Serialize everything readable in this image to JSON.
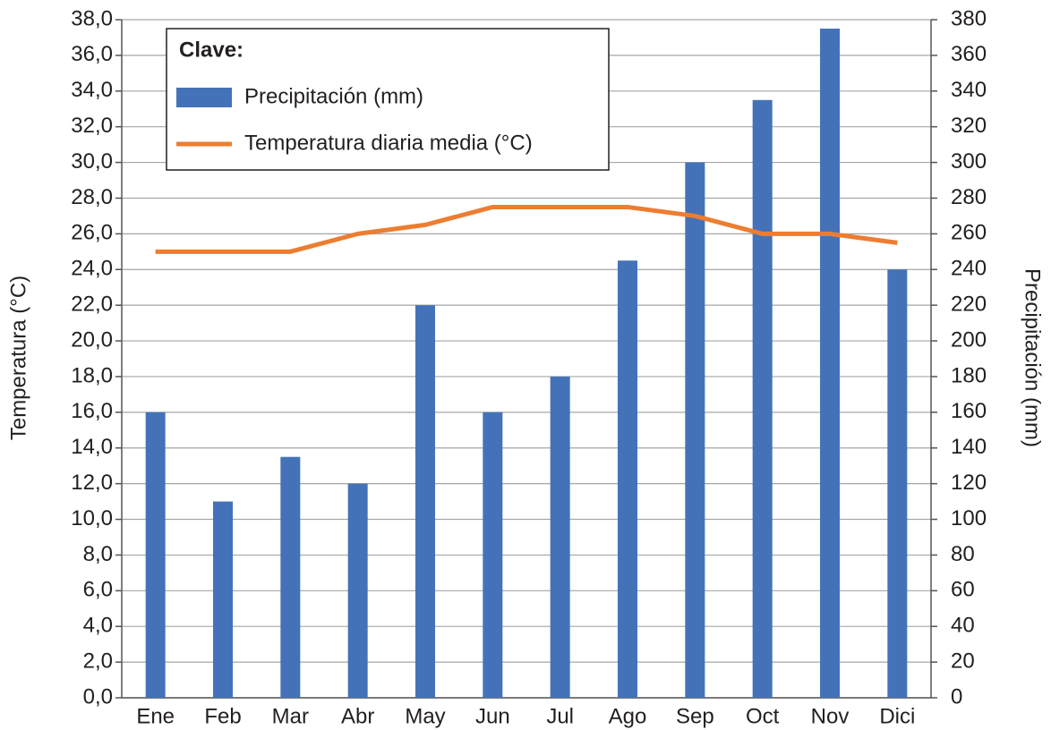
{
  "chart_data": {
    "type": "combo",
    "legend_title": "Clave:",
    "ylabel": "Temperatura  (°C)",
    "y2label": "Precipitación (mm)",
    "categories": [
      "Ene",
      "Feb",
      "Mar",
      "Abr",
      "May",
      "Jun",
      "Jul",
      "Ago",
      "Sep",
      "Oct",
      "Nov",
      "Dici"
    ],
    "series": [
      {
        "name": "Precipitación (mm)",
        "type": "bar",
        "axis": "y2",
        "color": "#4472b8",
        "values": [
          160,
          110,
          135,
          120,
          220,
          160,
          180,
          245,
          300,
          335,
          375,
          240
        ]
      },
      {
        "name": "Temperatura diaria media (°C)",
        "type": "line",
        "axis": "y",
        "color": "#ed7d31",
        "values": [
          25,
          25,
          25,
          26,
          26.5,
          27.5,
          27.5,
          27.5,
          27,
          26,
          26,
          25.5
        ]
      }
    ],
    "ylim": [
      0,
      38
    ],
    "yticks": [
      {
        "value": 0,
        "label": "0,0"
      },
      {
        "value": 2,
        "label": "2,0"
      },
      {
        "value": 4,
        "label": "4,0"
      },
      {
        "value": 6,
        "label": "6,0"
      },
      {
        "value": 8,
        "label": "8,0"
      },
      {
        "value": 10,
        "label": "10,0"
      },
      {
        "value": 12,
        "label": "12,0"
      },
      {
        "value": 14,
        "label": "14,0"
      },
      {
        "value": 16,
        "label": "16,0"
      },
      {
        "value": 18,
        "label": "18,0"
      },
      {
        "value": 20,
        "label": "20,0"
      },
      {
        "value": 22,
        "label": "22,0"
      },
      {
        "value": 24,
        "label": "24,0"
      },
      {
        "value": 26,
        "label": "26,0"
      },
      {
        "value": 28,
        "label": "28,0"
      },
      {
        "value": 30,
        "label": "30,0"
      },
      {
        "value": 32,
        "label": "32,0"
      },
      {
        "value": 34,
        "label": "34,0"
      },
      {
        "value": 36,
        "label": "36,0"
      },
      {
        "value": 38,
        "label": "38,0"
      }
    ],
    "y2lim": [
      0,
      380
    ],
    "y2ticks": [
      0,
      20,
      40,
      60,
      80,
      100,
      120,
      140,
      160,
      180,
      200,
      220,
      240,
      260,
      280,
      300,
      320,
      340,
      360,
      380
    ],
    "grid": true
  }
}
